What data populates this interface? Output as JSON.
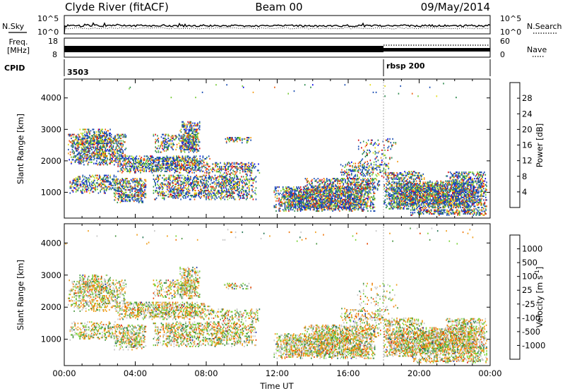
{
  "header": {
    "station": "Clyde River (fitACF)",
    "beam": "Beam 00",
    "date": "09/May/2014"
  },
  "status_panels": {
    "nsky_label": "N.Sky",
    "nsky_ticks": [
      "10^5",
      "10^0"
    ],
    "nsearch_label": "N.Search",
    "nsearch_ticks": [
      "10^5",
      "10^0"
    ],
    "freq_label_1": "Freq.",
    "freq_label_2": "[MHz]",
    "freq_ticks": [
      "18",
      "8"
    ],
    "nave_label": "Nave",
    "nave_ticks": [
      "60",
      "0"
    ],
    "cpid_label": "CPID",
    "cpid_segments": [
      "3503",
      "rbsp 200"
    ]
  },
  "colors": {
    "power_scale": [
      "#1414e6",
      "#1e50b4",
      "#2f8c4f",
      "#7acc3a",
      "#e6dc1e",
      "#f5a01e",
      "#f06014",
      "#dc1414"
    ],
    "velocity_scale": [
      "#2a3ca8",
      "#2d7a5a",
      "#4e9a46",
      "#7ed43c",
      "#c8c8c8",
      "#f0a020",
      "#f0780f",
      "#e64600",
      "#dc1414"
    ],
    "power_palette_dist": [
      0.06,
      0.38,
      0.14,
      0.13,
      0.07,
      0.05,
      0.1,
      0.07
    ],
    "velocity_palette_dist": [
      0.01,
      0.05,
      0.14,
      0.16,
      0.28,
      0.22,
      0.09,
      0.04,
      0.01
    ]
  },
  "chart_data": [
    {
      "type": "heatmap",
      "name": "Power",
      "ylabel": "Slant Range [km]",
      "ylim": [
        180,
        4600
      ],
      "y_ticks": [
        1000,
        2000,
        3000,
        4000
      ],
      "x_ticks": [
        "00:00",
        "04:00",
        "08:00",
        "12:00",
        "16:00",
        "20:00",
        "00:00"
      ],
      "xlim_hours": [
        0,
        24
      ],
      "colorbar_label": "Power [dB]",
      "colorbar_ticks": [
        "28",
        "24",
        "20",
        "16",
        "12",
        "8",
        "4"
      ],
      "blobs": [
        {
          "t0": 0.2,
          "t1": 3.5,
          "r0": 1900,
          "r1": 2900,
          "d": 0.55
        },
        {
          "t0": 0.8,
          "t1": 2.6,
          "r0": 2500,
          "r1": 3050,
          "d": 0.45
        },
        {
          "t0": 3.0,
          "t1": 8.2,
          "r0": 1650,
          "r1": 2200,
          "d": 0.6
        },
        {
          "t0": 5.0,
          "t1": 7.5,
          "r0": 2300,
          "r1": 2900,
          "d": 0.4
        },
        {
          "t0": 6.5,
          "t1": 7.6,
          "r0": 2300,
          "r1": 3300,
          "d": 0.55
        },
        {
          "t0": 0.3,
          "t1": 3.0,
          "r0": 1000,
          "r1": 1600,
          "d": 0.45
        },
        {
          "t0": 2.8,
          "t1": 4.6,
          "r0": 700,
          "r1": 1500,
          "d": 0.55
        },
        {
          "t0": 5.0,
          "t1": 10.8,
          "r0": 800,
          "r1": 1600,
          "d": 0.5
        },
        {
          "t0": 8.0,
          "t1": 11.0,
          "r0": 1600,
          "r1": 2000,
          "d": 0.4
        },
        {
          "t0": 9.0,
          "t1": 10.5,
          "r0": 2600,
          "r1": 2800,
          "d": 0.4
        },
        {
          "t0": 11.8,
          "t1": 17.5,
          "r0": 430,
          "r1": 1200,
          "d": 0.75
        },
        {
          "t0": 13.5,
          "t1": 17.8,
          "r0": 1100,
          "r1": 1500,
          "d": 0.55
        },
        {
          "t0": 15.5,
          "t1": 18.3,
          "r0": 1500,
          "r1": 2000,
          "d": 0.35
        },
        {
          "t0": 16.5,
          "t1": 18.8,
          "r0": 2000,
          "r1": 2800,
          "d": 0.15
        },
        {
          "t0": 18.0,
          "t1": 23.8,
          "r0": 500,
          "r1": 1400,
          "d": 0.8
        },
        {
          "t0": 19.5,
          "t1": 23.8,
          "r0": 300,
          "r1": 500,
          "d": 0.6
        },
        {
          "t0": 18.0,
          "t1": 20.3,
          "r0": 1400,
          "r1": 1700,
          "d": 0.5
        },
        {
          "t0": 21.5,
          "t1": 23.8,
          "r0": 1300,
          "r1": 1700,
          "d": 0.5
        },
        {
          "t0": 0.0,
          "t1": 24.0,
          "r0": 4000,
          "r1": 4500,
          "d": 0.01
        }
      ]
    },
    {
      "type": "heatmap",
      "name": "Velocity",
      "ylabel": "Slant Range [km]",
      "ylim": [
        180,
        4600
      ],
      "y_ticks": [
        1000,
        2000,
        3000,
        4000
      ],
      "x_ticks": [
        "00:00",
        "04:00",
        "08:00",
        "12:00",
        "16:00",
        "20:00",
        "00:00"
      ],
      "xlabel": "Time UT",
      "xlim_hours": [
        0,
        24
      ],
      "colorbar_label": "Velocity [m s^-1]",
      "colorbar_ticks": [
        "1000",
        "500",
        "100",
        "25",
        "-25",
        "-100",
        "-500",
        "-1000"
      ],
      "blobs": [
        {
          "t0": 0.2,
          "t1": 3.5,
          "r0": 1900,
          "r1": 2900,
          "d": 0.45
        },
        {
          "t0": 0.8,
          "t1": 2.6,
          "r0": 2500,
          "r1": 3050,
          "d": 0.4
        },
        {
          "t0": 3.0,
          "t1": 8.2,
          "r0": 1650,
          "r1": 2200,
          "d": 0.55
        },
        {
          "t0": 5.0,
          "t1": 7.5,
          "r0": 2300,
          "r1": 2900,
          "d": 0.35
        },
        {
          "t0": 6.5,
          "t1": 7.6,
          "r0": 2300,
          "r1": 3300,
          "d": 0.5
        },
        {
          "t0": 0.3,
          "t1": 3.0,
          "r0": 1000,
          "r1": 1600,
          "d": 0.4
        },
        {
          "t0": 2.8,
          "t1": 4.6,
          "r0": 700,
          "r1": 1500,
          "d": 0.5
        },
        {
          "t0": 5.0,
          "t1": 10.8,
          "r0": 800,
          "r1": 1600,
          "d": 0.45
        },
        {
          "t0": 8.0,
          "t1": 11.0,
          "r0": 1600,
          "r1": 2000,
          "d": 0.35
        },
        {
          "t0": 9.0,
          "t1": 10.5,
          "r0": 2600,
          "r1": 2800,
          "d": 0.35
        },
        {
          "t0": 11.8,
          "t1": 17.5,
          "r0": 430,
          "r1": 1200,
          "d": 0.7
        },
        {
          "t0": 13.5,
          "t1": 17.8,
          "r0": 1100,
          "r1": 1500,
          "d": 0.5
        },
        {
          "t0": 15.5,
          "t1": 18.3,
          "r0": 1500,
          "r1": 2000,
          "d": 0.3
        },
        {
          "t0": 16.5,
          "t1": 18.8,
          "r0": 2000,
          "r1": 2800,
          "d": 0.12
        },
        {
          "t0": 18.0,
          "t1": 23.8,
          "r0": 500,
          "r1": 1400,
          "d": 0.75
        },
        {
          "t0": 19.5,
          "t1": 23.8,
          "r0": 300,
          "r1": 500,
          "d": 0.55
        },
        {
          "t0": 18.0,
          "t1": 20.3,
          "r0": 1400,
          "r1": 1700,
          "d": 0.45
        },
        {
          "t0": 21.5,
          "t1": 23.8,
          "r0": 1300,
          "r1": 1700,
          "d": 0.45
        },
        {
          "t0": 0.0,
          "t1": 24.0,
          "r0": 4000,
          "r1": 4500,
          "d": 0.01
        }
      ]
    }
  ]
}
